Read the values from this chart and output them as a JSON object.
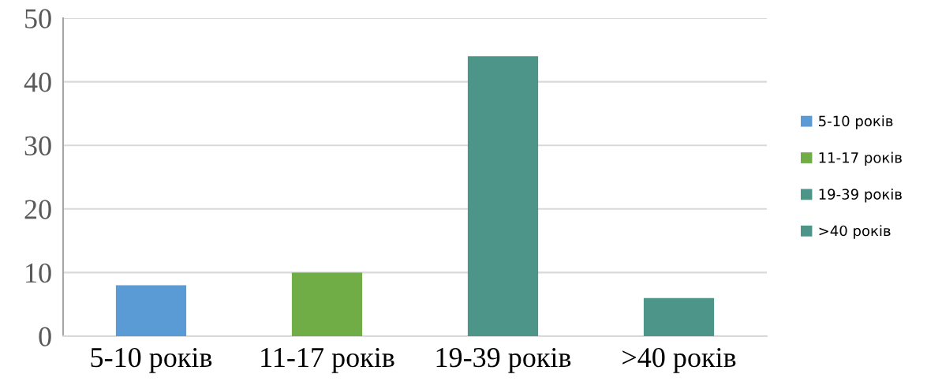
{
  "chart_data": {
    "type": "bar",
    "categories": [
      "5-10 років",
      "11-17 років",
      "19-39 років",
      ">40 років"
    ],
    "series": [
      {
        "name": "5-10 років",
        "color": "#5b9bd5",
        "values": [
          8,
          null,
          null,
          null
        ]
      },
      {
        "name": "11-17 років",
        "color": "#70ad47",
        "values": [
          null,
          10,
          null,
          null
        ]
      },
      {
        "name": "19-39 років",
        "color": "#4e9589",
        "values": [
          null,
          null,
          44,
          null
        ]
      },
      {
        "name": ">40 років",
        "color": "#4e9589",
        "values": [
          null,
          null,
          null,
          6
        ]
      }
    ],
    "ylim": [
      0,
      50
    ],
    "yticks": [
      0,
      10,
      20,
      30,
      40,
      50
    ],
    "grid": "y",
    "legend": "right"
  }
}
